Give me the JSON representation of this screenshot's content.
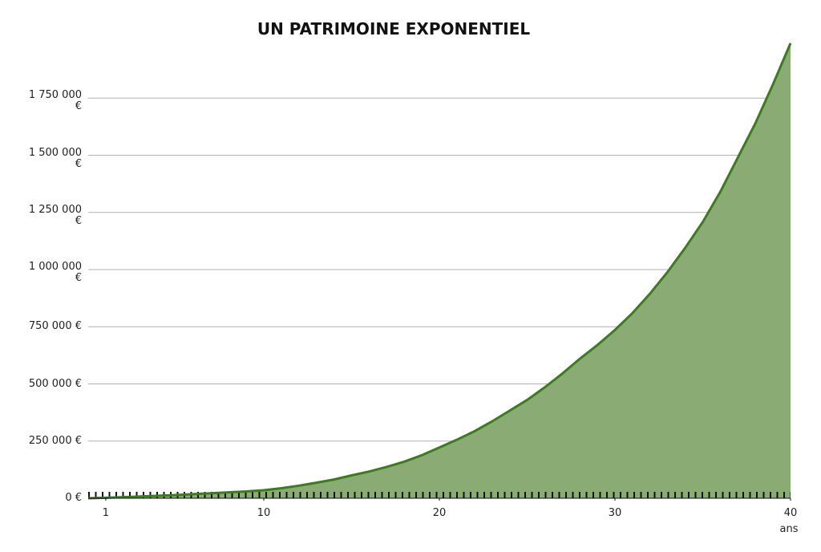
{
  "chart_data": {
    "type": "area",
    "title": "UN PATRIMOINE EXPONENTIEL",
    "x": [
      0,
      1,
      2,
      3,
      4,
      5,
      6,
      7,
      8,
      9,
      10,
      11,
      12,
      13,
      14,
      15,
      16,
      17,
      18,
      19,
      20,
      21,
      22,
      23,
      24,
      25,
      26,
      27,
      28,
      29,
      30,
      31,
      32,
      33,
      34,
      35,
      36,
      37,
      38,
      39,
      40
    ],
    "values": [
      0,
      2000,
      5000,
      8000,
      11000,
      14000,
      18000,
      22000,
      26000,
      30000,
      35000,
      44000,
      55000,
      68000,
      82000,
      100000,
      117000,
      137000,
      160000,
      188000,
      222000,
      256000,
      293000,
      336000,
      383000,
      430000,
      485000,
      545000,
      610000,
      670000,
      736000,
      810000,
      895000,
      990000,
      1095000,
      1208000,
      1340000,
      1490000,
      1640000,
      1810000,
      1990000
    ],
    "color": "#8aab74",
    "line_color": "#3d7a22",
    "xlim": [
      0,
      40
    ],
    "xticks": [
      1,
      10,
      20,
      30,
      40
    ],
    "x_label": "ans",
    "ylim": [
      0,
      2000000
    ],
    "yticks": [
      {
        "value": 0,
        "label": "0 €"
      },
      {
        "value": 250000,
        "label": "250 000 €"
      },
      {
        "value": 500000,
        "label": "500 000 €"
      },
      {
        "value": 750000,
        "label": "750 000 €"
      },
      {
        "value": 1000000,
        "label": "1 000 000 €"
      },
      {
        "value": 1250000,
        "label": "1 250 000 €"
      },
      {
        "value": 1500000,
        "label": "1 500 000 €"
      },
      {
        "value": 1750000,
        "label": "1 750 000 €"
      }
    ],
    "grid": true
  }
}
